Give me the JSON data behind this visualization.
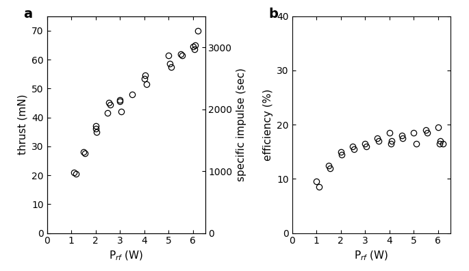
{
  "panel_a": {
    "thrust_x": [
      1.1,
      1.2,
      1.5,
      1.55,
      2.0,
      2.0,
      2.05,
      2.5,
      2.55,
      2.6,
      3.0,
      3.0,
      3.05,
      3.5,
      4.0,
      4.05,
      4.1,
      5.0,
      5.05,
      5.1,
      5.5,
      5.55,
      6.0,
      6.05,
      6.1,
      6.2
    ],
    "thrust_y": [
      21.0,
      20.5,
      28.0,
      27.5,
      36.0,
      37.0,
      35.0,
      41.5,
      45.0,
      44.5,
      46.0,
      45.5,
      42.0,
      48.0,
      53.5,
      54.5,
      51.5,
      61.5,
      58.5,
      57.5,
      62.0,
      61.5,
      64.5,
      63.5,
      65.0,
      70.0
    ],
    "xlabel": "P$_{rf}$ (W)",
    "ylabel_left": "thrust (mN)",
    "ylabel_right": "specific impulse (sec)",
    "xlim": [
      0,
      6.5
    ],
    "ylim_left": [
      0,
      75
    ],
    "ylim_right": [
      0,
      3500
    ],
    "xticks": [
      0,
      1,
      2,
      3,
      4,
      5,
      6
    ],
    "yticks_left": [
      0,
      10,
      20,
      30,
      40,
      50,
      60,
      70
    ],
    "yticks_right": [
      0,
      1000,
      2000,
      3000
    ],
    "label": "a"
  },
  "panel_b": {
    "eff_x": [
      1.0,
      1.1,
      1.5,
      1.55,
      2.0,
      2.05,
      2.5,
      2.55,
      3.0,
      3.05,
      3.5,
      3.55,
      4.0,
      4.05,
      4.1,
      4.5,
      4.55,
      5.0,
      5.1,
      5.5,
      5.55,
      6.0,
      6.05,
      6.1,
      6.2
    ],
    "eff_y": [
      9.5,
      8.5,
      12.5,
      12.0,
      15.0,
      14.5,
      16.0,
      15.5,
      16.5,
      16.0,
      17.5,
      17.0,
      18.5,
      16.5,
      17.0,
      18.0,
      17.5,
      18.5,
      16.5,
      19.0,
      18.5,
      19.5,
      16.5,
      17.0,
      16.5
    ],
    "xlabel": "P$_{rf}$ (W)",
    "ylabel": "efficiency (%)",
    "xlim": [
      0,
      6.5
    ],
    "ylim": [
      0,
      40
    ],
    "xticks": [
      0,
      1,
      2,
      3,
      4,
      5,
      6
    ],
    "yticks": [
      0,
      10,
      20,
      30,
      40
    ],
    "label": "b"
  },
  "marker_size": 6,
  "marker_color": "none",
  "marker_edge_color": "black",
  "marker_edge_width": 0.9,
  "font_size": 10,
  "label_fontsize": 11,
  "tick_fontsize": 10
}
